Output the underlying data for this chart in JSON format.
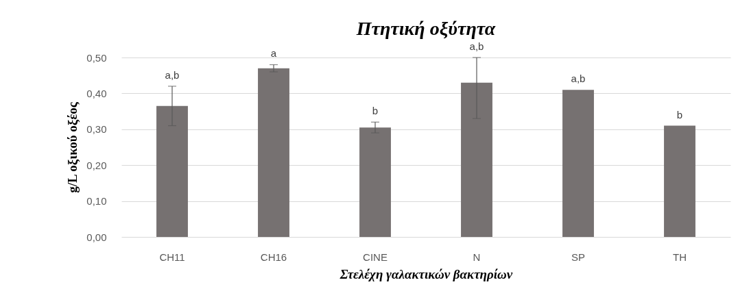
{
  "chart_data": {
    "type": "bar",
    "title": "Πτητική οξύτητα",
    "xlabel": "Στελέχη γαλακτικών βακτηρίων",
    "ylabel": "g/L οξικού οξέος",
    "categories": [
      "CH11",
      "CH16",
      "CINE",
      "N",
      "SP",
      "TH"
    ],
    "values": [
      0.365,
      0.47,
      0.305,
      0.43,
      0.41,
      0.31
    ],
    "errors": [
      [
        0.31,
        0.42
      ],
      [
        0.46,
        0.48
      ],
      [
        0.29,
        0.32
      ],
      [
        0.33,
        0.5
      ],
      null,
      null
    ],
    "color": "#767171",
    "ylim": [
      0,
      0.5
    ],
    "yticks": [
      {
        "value": 0,
        "label": "0,00"
      },
      {
        "value": 0.1,
        "label": "0,10"
      },
      {
        "value": 0.2,
        "label": "0,20"
      },
      {
        "value": 0.3,
        "label": "0,30"
      },
      {
        "value": 0.4,
        "label": "0,40"
      },
      {
        "value": 0.5,
        "label": "0,50"
      }
    ],
    "grid": "y",
    "annotations": [
      {
        "text": "a,b",
        "x": "CH11",
        "y": 0.42
      },
      {
        "text": "a",
        "x": "CH16",
        "y": 0.48
      },
      {
        "text": "b",
        "x": "CINE",
        "y": 0.32
      },
      {
        "text": "a,b",
        "x": "N",
        "y": 0.5
      },
      {
        "text": "a,b",
        "x": "SP",
        "y": 0.41
      },
      {
        "text": "b",
        "x": "TH",
        "y": 0.31
      }
    ]
  }
}
